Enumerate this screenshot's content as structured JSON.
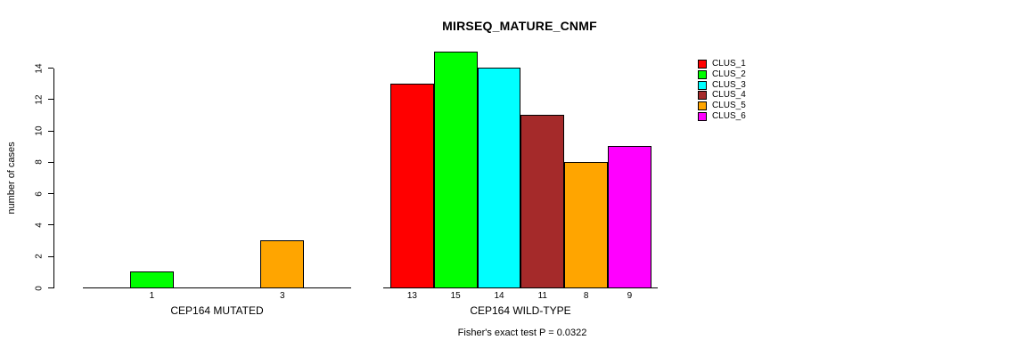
{
  "title": "MIRSEQ_MATURE_CNMF",
  "caption": "Fisher's exact test P = 0.0322",
  "chart_data": {
    "type": "bar",
    "title": "MIRSEQ_MATURE_CNMF",
    "xlabel": "",
    "ylabel": "number of cases",
    "ylim": [
      0,
      14
    ],
    "yticks": [
      0,
      2,
      4,
      6,
      8,
      10,
      12,
      14
    ],
    "grid": false,
    "legend_position": "right",
    "legend": [
      {
        "label": "CLUS_1",
        "color": "#FF0000"
      },
      {
        "label": "CLUS_2",
        "color": "#00FF00"
      },
      {
        "label": "CLUS_3",
        "color": "#00FFFF"
      },
      {
        "label": "CLUS_4",
        "color": "#A52A2A"
      },
      {
        "label": "CLUS_5",
        "color": "#FFA500"
      },
      {
        "label": "CLUS_6",
        "color": "#FF00FF"
      }
    ],
    "groups": [
      {
        "label": "CEP164 MUTATED",
        "series": [
          "CLUS_1",
          "CLUS_2",
          "CLUS_3",
          "CLUS_4",
          "CLUS_5",
          "CLUS_6"
        ],
        "values": [
          0,
          1,
          0,
          0,
          3,
          0
        ],
        "bar_labels": [
          "",
          "1",
          "",
          "",
          "3",
          ""
        ]
      },
      {
        "label": "CEP164 WILD-TYPE",
        "series": [
          "CLUS_1",
          "CLUS_2",
          "CLUS_3",
          "CLUS_4",
          "CLUS_5",
          "CLUS_6"
        ],
        "values": [
          13,
          15,
          14,
          11,
          8,
          9
        ],
        "bar_labels": [
          "13",
          "15",
          "14",
          "11",
          "8",
          "9"
        ]
      }
    ],
    "annotation": "Fisher's exact test P = 0.0322"
  }
}
